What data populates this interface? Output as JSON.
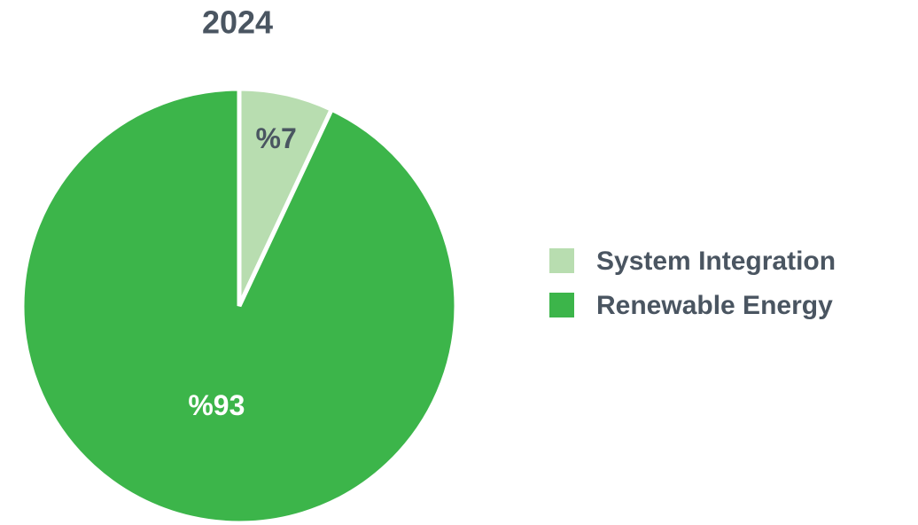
{
  "chart_data": {
    "type": "pie",
    "title": "2024",
    "categories": [
      "System Integration",
      "Renewable Energy"
    ],
    "values": [
      7,
      93
    ],
    "value_labels": [
      "%7",
      "%93"
    ],
    "colors": [
      "#b8ddb0",
      "#3cb54a"
    ],
    "legend": "right"
  }
}
